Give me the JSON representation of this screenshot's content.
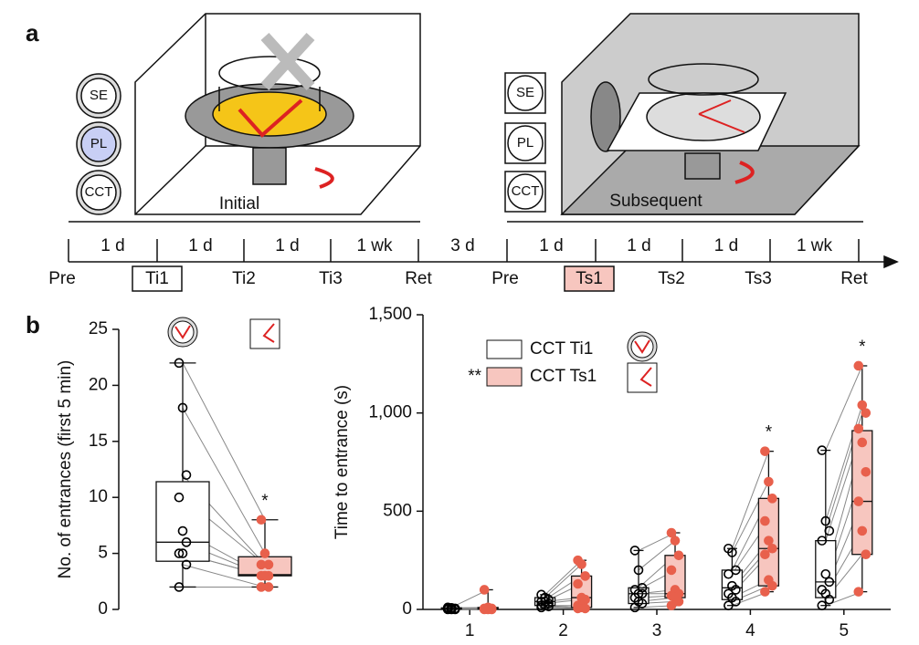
{
  "panel_labels": [
    "a",
    "b"
  ],
  "diagram": {
    "initial_icons": [
      "SE",
      "PL",
      "CCT"
    ],
    "subsequent_icons": [
      "SE",
      "PL",
      "CCT"
    ],
    "initial_label": "Initial",
    "subsequent_label": "Subsequent",
    "intervals": [
      "1 d",
      "1 d",
      "1 d",
      "1 wk",
      "3 d",
      "1 d",
      "1 d",
      "1 d",
      "1 wk"
    ],
    "stages": [
      "Pre",
      "Ti1",
      "Ti2",
      "Ti3",
      "Ret",
      "Pre",
      "Ts1",
      "Ts2",
      "Ts3",
      "Ret"
    ]
  },
  "chart_data": [
    {
      "type": "box",
      "y_label": "No. of entrances (first 5 min)",
      "categories": [
        null,
        null
      ],
      "ylim": [
        0,
        25
      ],
      "yticks": [
        0,
        5,
        10,
        15,
        20,
        25
      ],
      "min": [
        2,
        2
      ],
      "q1": [
        4.3,
        3
      ],
      "median": [
        6,
        3.1
      ],
      "q3": [
        11.4,
        4.7
      ],
      "max": [
        22,
        8
      ],
      "colors": [
        "#ffffff",
        "#f7c6bf"
      ],
      "point_colors": [
        "#000000",
        "#e8604c"
      ],
      "points": [
        [
          22,
          18,
          12,
          10,
          7,
          6,
          5,
          5,
          4,
          2
        ],
        [
          8,
          5,
          4,
          4,
          3,
          3,
          3,
          3,
          2,
          2
        ]
      ],
      "annotations": [
        {
          "text": "*",
          "category": 1
        }
      ]
    },
    {
      "type": "box",
      "y_label": "Time to entrance (s)",
      "categories": [
        "1",
        "2",
        "3",
        "4",
        "5"
      ],
      "ylim": [
        0,
        1500
      ],
      "yticks": [
        0,
        500,
        {
          "value": 1000,
          "label": "1,000"
        },
        {
          "value": 1500,
          "label": "1,500"
        }
      ],
      "series": [
        {
          "name": "CCT Ti1",
          "color": "#ffffff",
          "point_color": "#000000",
          "min": [
            0,
            10,
            10,
            20,
            20
          ],
          "q1": [
            2,
            20,
            30,
            50,
            60
          ],
          "median": [
            5,
            40,
            80,
            110,
            140
          ],
          "q3": [
            8,
            60,
            110,
            200,
            350
          ],
          "max": [
            10,
            75,
            300,
            310,
            810
          ],
          "points": [
            [
              10,
              8,
              5,
              5,
              3,
              2,
              2,
              0,
              0,
              0
            ],
            [
              75,
              60,
              50,
              40,
              40,
              30,
              20,
              20,
              15,
              10
            ],
            [
              300,
              200,
              110,
              100,
              80,
              80,
              60,
              40,
              30,
              10
            ],
            [
              310,
              290,
              200,
              180,
              120,
              100,
              80,
              60,
              40,
              20
            ],
            [
              810,
              450,
              400,
              350,
              180,
              140,
              100,
              80,
              50,
              20
            ]
          ]
        },
        {
          "name": "CCT Ts1",
          "color": "#f7c6bf",
          "point_color": "#e8604c",
          "annotation": "**",
          "min": [
            0,
            5,
            20,
            90,
            90
          ],
          "q1": [
            2,
            10,
            60,
            120,
            280
          ],
          "median": [
            5,
            60,
            80,
            310,
            550
          ],
          "q3": [
            10,
            170,
            275,
            565,
            910
          ],
          "max": [
            100,
            250,
            390,
            805,
            1240
          ],
          "points": [
            [
              100,
              10,
              5,
              5,
              3,
              2,
              2,
              0,
              0,
              0
            ],
            [
              250,
              230,
              170,
              130,
              60,
              50,
              20,
              10,
              5,
              5
            ],
            [
              390,
              350,
              275,
              200,
              100,
              80,
              70,
              60,
              40,
              20
            ],
            [
              805,
              650,
              565,
              450,
              350,
              310,
              280,
              150,
              120,
              90
            ],
            [
              1240,
              1040,
              1000,
              920,
              850,
              700,
              550,
              400,
              280,
              90
            ]
          ]
        }
      ],
      "annotations": [
        {
          "text": "*",
          "category": 3
        },
        {
          "text": "*",
          "category": 4
        }
      ]
    }
  ]
}
